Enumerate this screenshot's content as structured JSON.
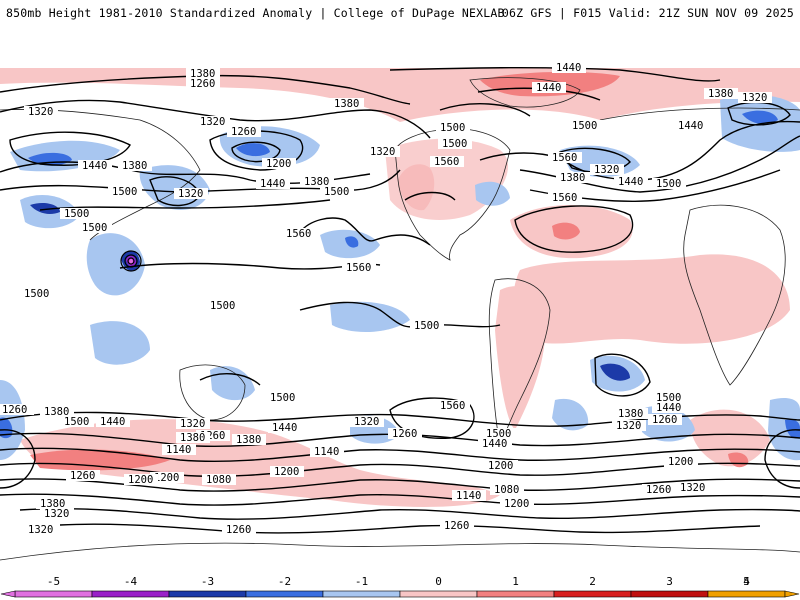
{
  "header": {
    "title": "850mb Height 1981-2010 Standardized Anomaly | College of DuPage NEXLAB",
    "run_info": "06Z GFS | F015 Valid: 21Z SUN NOV 09 2025"
  },
  "legend": {
    "ticks": [
      "-5",
      "-4",
      "-3",
      "-2",
      "-1",
      "0",
      "1",
      "2",
      "3",
      "4",
      "5"
    ],
    "colors": [
      "#e070e0",
      "#9a20c8",
      "#1c3aa8",
      "#3a6ee0",
      "#a8c6f0",
      "#ffffff",
      "#f8c6c6",
      "#f28080",
      "#d82020",
      "#c01010",
      "#f0a000"
    ]
  },
  "contour_labels": [
    "1380",
    "1260",
    "1320",
    "1380",
    "1320",
    "1260",
    "1200",
    "1320",
    "1440",
    "1380",
    "1500",
    "1320",
    "1440",
    "1380",
    "1500",
    "1560",
    "1500",
    "1500",
    "1500",
    "1500",
    "1560",
    "1500",
    "1500",
    "1440",
    "1440",
    "1500",
    "1560",
    "1380",
    "1440",
    "1500",
    "1320",
    "1440",
    "1500",
    "1560",
    "1380",
    "1320",
    "1500",
    "1440",
    "1380",
    "1320",
    "1260",
    "1200",
    "1500",
    "1380",
    "1320",
    "1260",
    "1440",
    "1380",
    "1140",
    "1200",
    "1260",
    "1080",
    "1200",
    "1320",
    "1260",
    "1140",
    "1560",
    "1500",
    "1440",
    "1200",
    "1140",
    "1080",
    "1200",
    "1260",
    "1260",
    "1320",
    "1260",
    "1380",
    "1320",
    "1200",
    "1260",
    "1320",
    "1380",
    "1500",
    "1440",
    "1560"
  ]
}
